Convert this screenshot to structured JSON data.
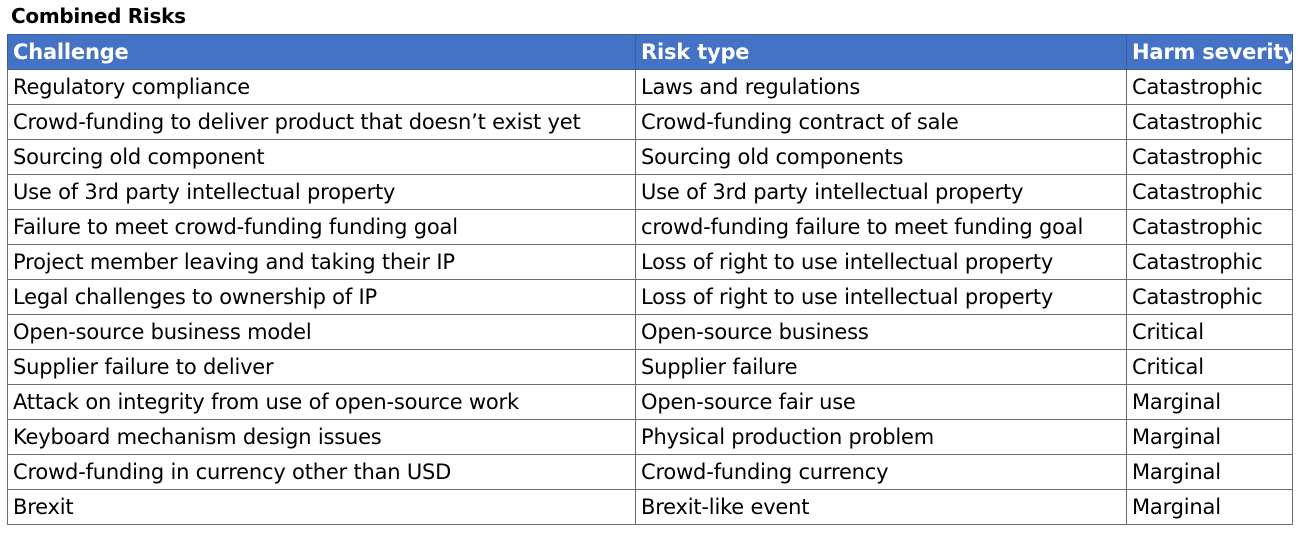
{
  "title": "Combined Risks",
  "headers": [
    "Challenge",
    "Risk type",
    "Harm severity"
  ],
  "rows": [
    [
      "Regulatory compliance",
      "Laws and regulations",
      "Catastrophic"
    ],
    [
      "Crowd-funding to deliver product that doesn’t exist yet",
      "Crowd-funding contract of sale",
      "Catastrophic"
    ],
    [
      "Sourcing old component",
      "Sourcing old components",
      "Catastrophic"
    ],
    [
      "Use of 3rd party intellectual property",
      "Use of 3rd party intellectual property",
      "Catastrophic"
    ],
    [
      "Failure to meet crowd-funding funding goal",
      "crowd-funding failure to meet funding goal",
      "Catastrophic"
    ],
    [
      "Project member leaving and taking their IP",
      "Loss of right to use intellectual property",
      "Catastrophic"
    ],
    [
      "Legal challenges to ownership of IP",
      "Loss of right to use intellectual property",
      "Catastrophic"
    ],
    [
      "Open-source business model",
      "Open-source business",
      "Critical"
    ],
    [
      "Supplier failure to deliver",
      "Supplier failure",
      "Critical"
    ],
    [
      "Attack on integrity from use of open-source work",
      "Open-source fair use",
      "Marginal"
    ],
    [
      "Keyboard mechanism design issues",
      "Physical production problem",
      "Marginal"
    ],
    [
      "Crowd-funding in currency other than USD",
      "Crowd-funding currency",
      "Marginal"
    ],
    [
      "Brexit",
      "Brexit-like event",
      "Marginal"
    ]
  ]
}
